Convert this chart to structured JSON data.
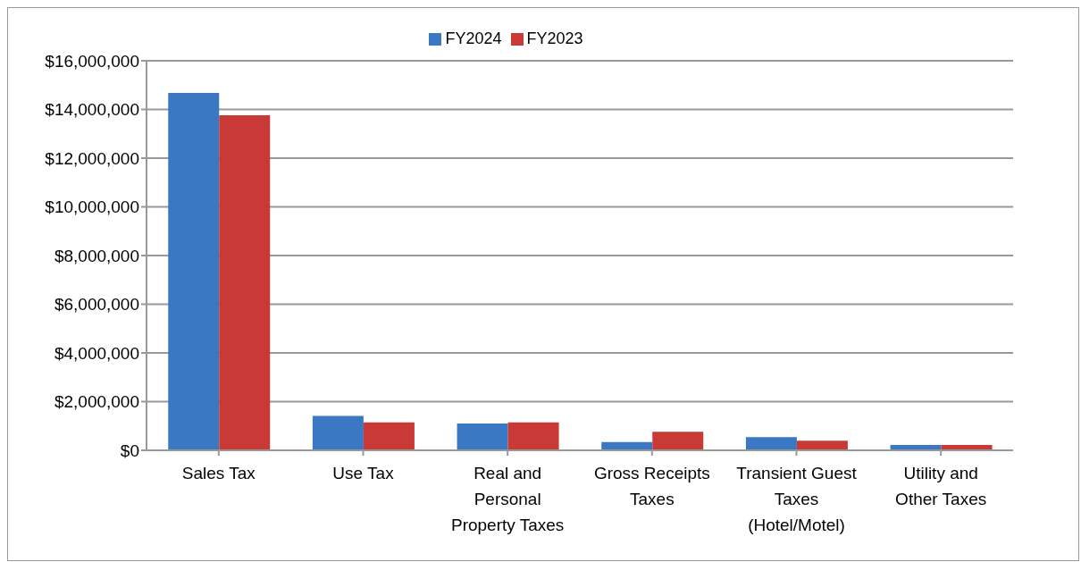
{
  "chart_data": {
    "type": "bar",
    "categories": [
      "Sales Tax",
      "Use Tax",
      "Real and Personal Property Taxes",
      "Gross Receipts Taxes",
      "Transient Guest Taxes (Hotel/Motel)",
      "Utility and Other Taxes"
    ],
    "series": [
      {
        "name": "FY2024",
        "color": "#3a78c4",
        "values": [
          14680000,
          1410000,
          1100000,
          340000,
          540000,
          220000
        ]
      },
      {
        "name": "FY2023",
        "color": "#c93a36",
        "values": [
          13760000,
          1150000,
          1150000,
          760000,
          390000,
          220000
        ]
      }
    ],
    "ylim": [
      0,
      16000000
    ],
    "yticks": [
      {
        "value": 0,
        "label": "$0"
      },
      {
        "value": 2000000,
        "label": "$2,000,000"
      },
      {
        "value": 4000000,
        "label": "$4,000,000"
      },
      {
        "value": 6000000,
        "label": "$6,000,000"
      },
      {
        "value": 8000000,
        "label": "$8,000,000"
      },
      {
        "value": 10000000,
        "label": "$10,000,000"
      },
      {
        "value": 12000000,
        "label": "$12,000,000"
      },
      {
        "value": 14000000,
        "label": "$14,000,000"
      },
      {
        "value": 16000000,
        "label": "$16,000,000"
      }
    ],
    "grid": "y",
    "legend": "top"
  }
}
